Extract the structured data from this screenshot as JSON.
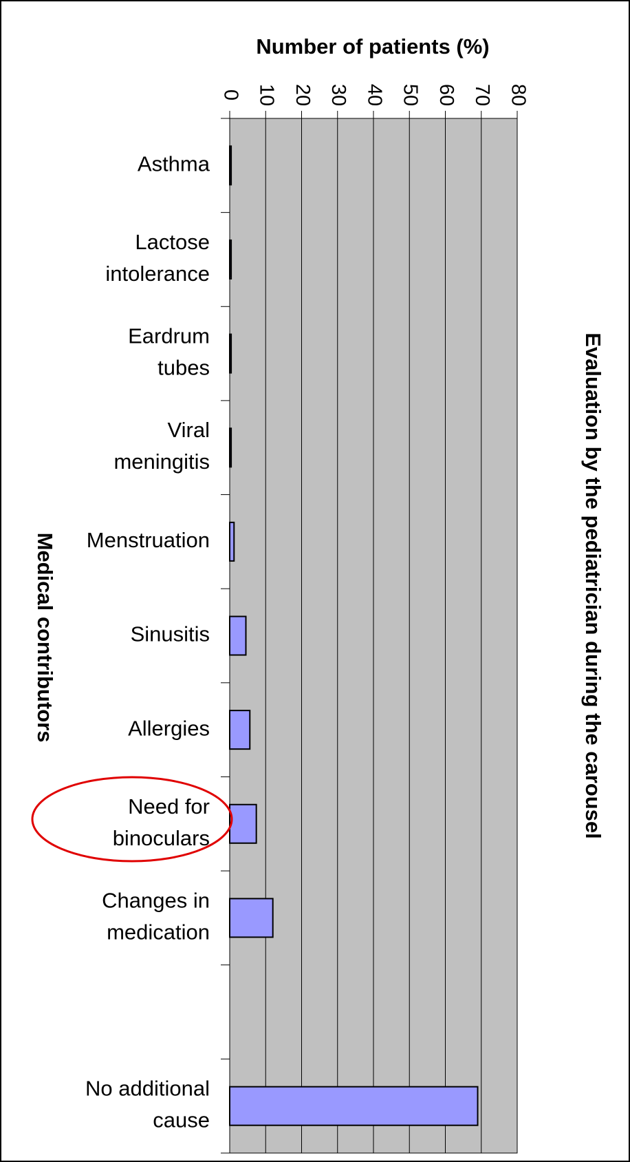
{
  "chart_data": {
    "type": "bar",
    "orientation": "horizontal",
    "title": "Evaluation by the pediatrician during the carousel",
    "x_label": "Number of patients (%)",
    "y_label": "Medical contributors",
    "categories": [
      "Asthma",
      "Lactose\nintolerance",
      "Eardrum\ntubes",
      "Viral\nmeningitis",
      "Menstruation",
      "Sinusitis",
      "Allergies",
      "Need for\nbinoculars",
      "Changes in\nmedication",
      null,
      "No additional\ncause"
    ],
    "values": [
      0.4,
      0.4,
      0.4,
      0.4,
      1.2,
      4.5,
      5.6,
      7.4,
      12,
      null,
      69
    ],
    "color": "#9999ff",
    "xlim": [
      0,
      80
    ],
    "xticks": [
      0,
      10,
      20,
      30,
      40,
      50,
      60,
      70,
      80
    ],
    "grid": true
  }
}
